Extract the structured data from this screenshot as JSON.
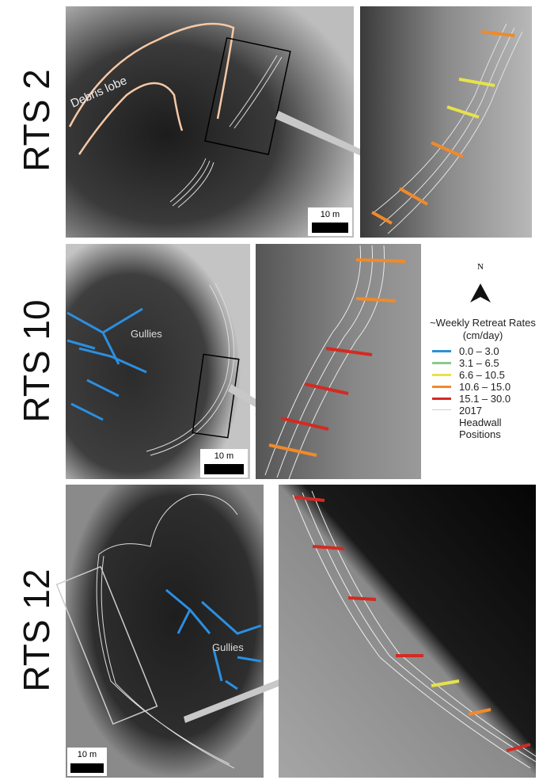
{
  "panels": [
    {
      "label": "RTS 2",
      "annotation": "Debris lobe",
      "scale": "10 m"
    },
    {
      "label": "RTS 10",
      "annotation": "Gullies",
      "scale": "10 m"
    },
    {
      "label": "RTS 12",
      "annotation": "Gullies",
      "scale": "10 m"
    }
  ],
  "legend": {
    "north": "N",
    "title": "~Weekly Retreat Rates (cm/day)",
    "items": [
      {
        "label": "0.0 – 3.0",
        "color": "#2e8fd6"
      },
      {
        "label": "3.1 – 6.5",
        "color": "#8cc98a"
      },
      {
        "label": "6.6 – 10.5",
        "color": "#e6e24a"
      },
      {
        "label": "10.6 – 15.0",
        "color": "#ef8a2c"
      },
      {
        "label": "15.1 – 30.0",
        "color": "#d42a22"
      },
      {
        "label": "2017 Headwall Positions",
        "color": "#cfcfcf"
      }
    ]
  }
}
